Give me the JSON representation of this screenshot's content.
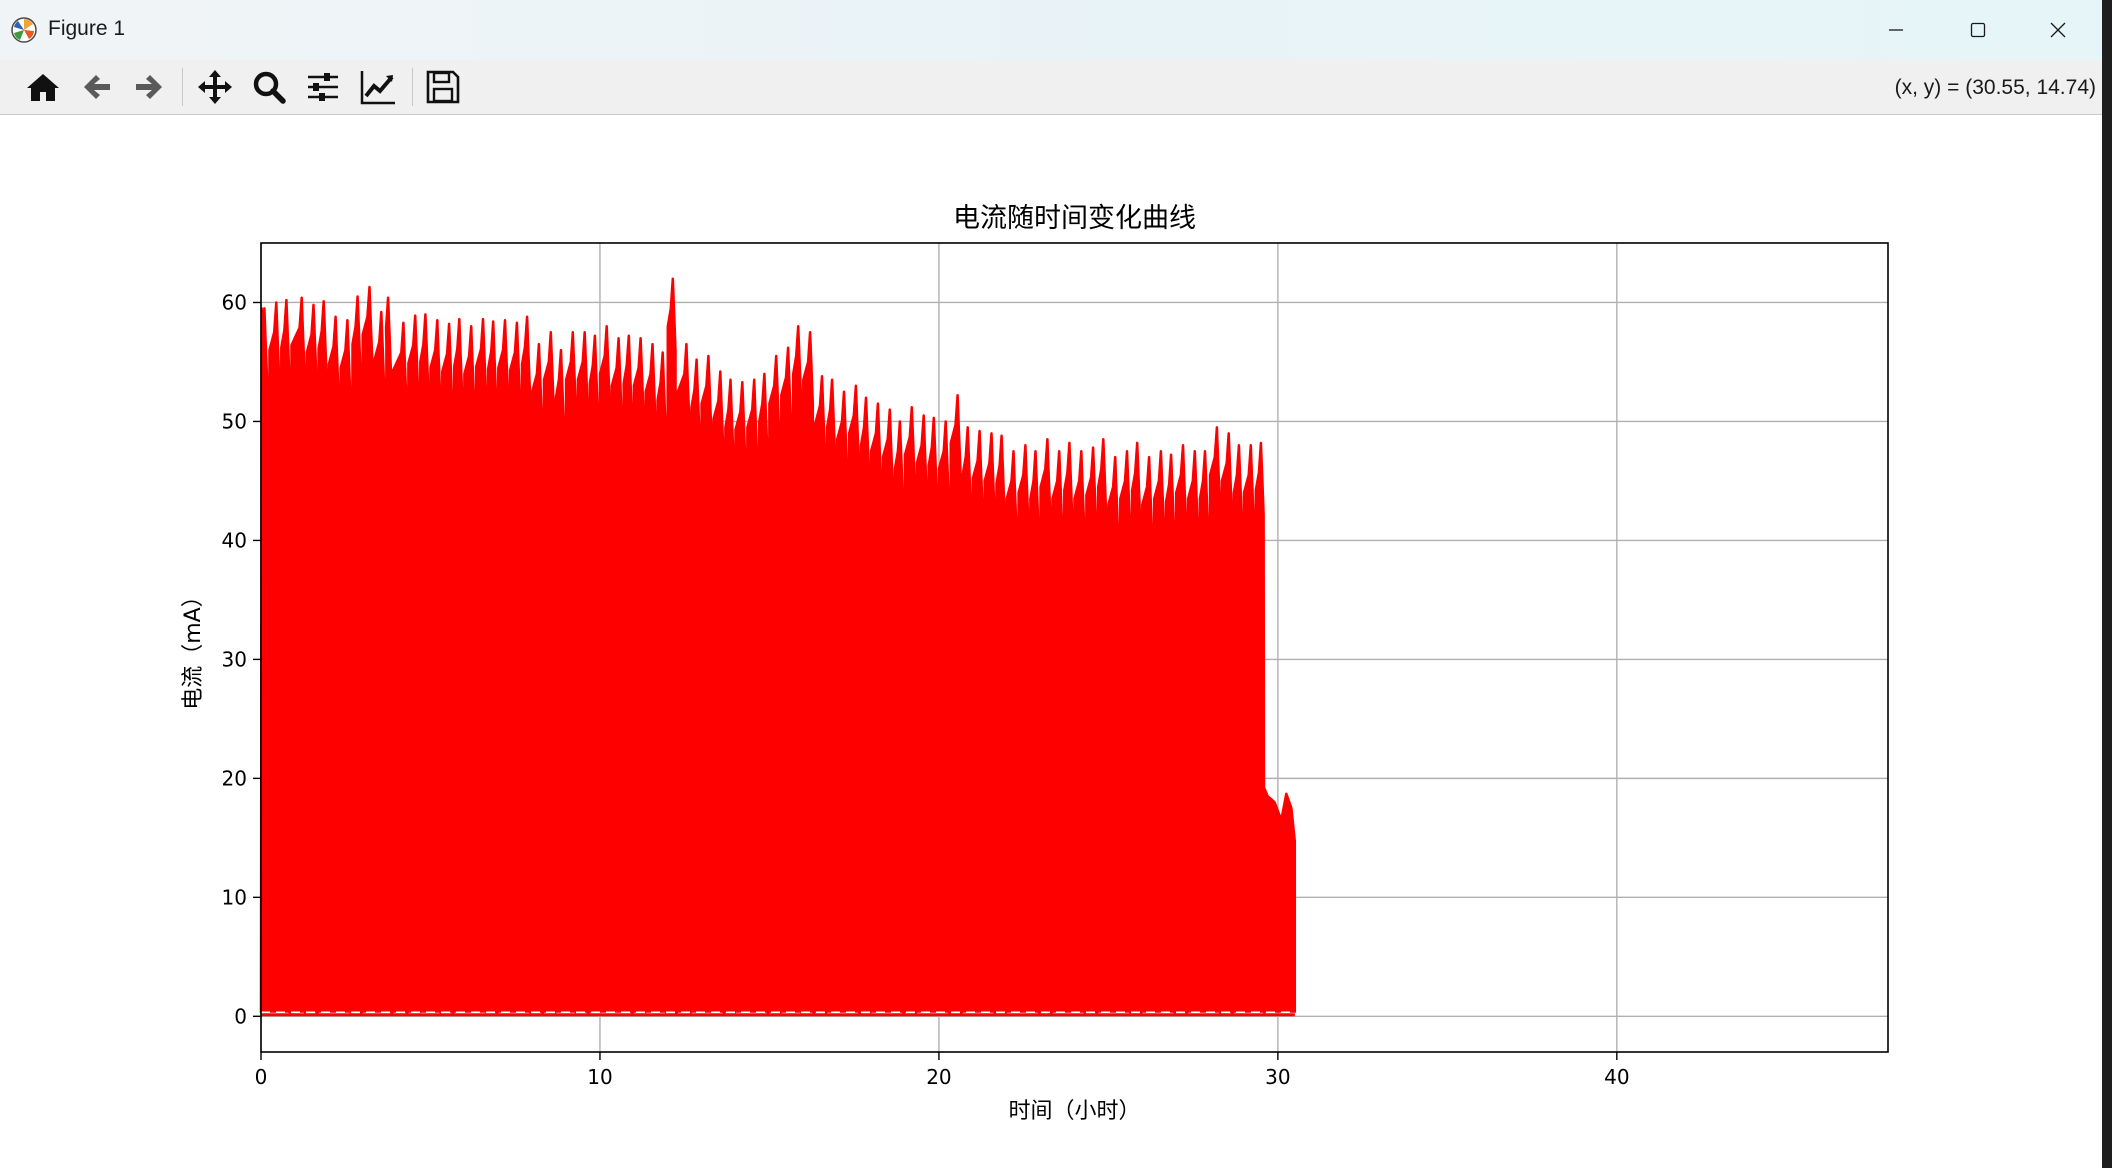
{
  "window": {
    "title": "Figure 1",
    "icon": "matplotlib-icon",
    "controls": [
      "minimize-icon",
      "maximize-icon",
      "close-icon"
    ]
  },
  "toolbar": {
    "buttons": [
      "home-icon",
      "back-icon",
      "forward-icon",
      "pan-icon",
      "zoom-icon",
      "configure-subplots-icon",
      "edit-axes-icon",
      "save-icon"
    ],
    "coords": "(x, y) = (30.55, 14.74)"
  },
  "chart_data": {
    "type": "line",
    "title": "电流随时间变化曲线",
    "xlabel": "时间（小时）",
    "ylabel": "电流（mA）",
    "xlim": [
      0,
      48
    ],
    "ylim": [
      -3,
      65
    ],
    "xticks": [
      0,
      10,
      20,
      30,
      40
    ],
    "yticks": [
      0,
      10,
      20,
      30,
      40,
      50,
      60
    ],
    "grid": true,
    "legend": "none",
    "line_color": "#ff0000",
    "description_of_series": "Repeated current pulses dropping to about 0.3 mA between pulses",
    "series": [
      {
        "x": [
          0.1,
          0.45,
          0.75,
          1.2,
          1.55,
          1.85,
          2.2,
          2.55,
          2.85,
          3.2,
          3.55,
          3.75,
          4.2,
          4.55,
          4.85,
          5.2,
          5.55,
          5.85,
          6.2,
          6.55,
          6.85,
          7.2,
          7.55,
          7.85,
          8.2,
          8.55,
          8.85,
          9.2,
          9.55,
          9.85,
          10.2,
          10.55,
          10.85,
          11.2,
          11.55,
          11.85,
          12.15,
          12.55,
          12.85,
          13.2,
          13.55,
          13.85,
          14.2,
          14.55,
          14.85,
          15.2,
          15.55,
          15.85,
          16.2,
          16.55,
          16.85,
          17.2,
          17.55,
          17.85,
          18.2,
          18.55,
          18.85,
          19.2,
          19.55,
          19.85,
          20.2,
          20.55,
          20.85,
          21.2,
          21.55,
          21.85,
          22.2,
          22.55,
          22.85,
          23.2,
          23.55,
          23.85,
          24.2,
          24.55,
          24.85,
          25.2,
          25.55,
          25.85,
          26.2,
          26.55,
          26.85,
          27.2,
          27.55,
          27.85,
          28.2,
          28.55,
          28.85,
          29.2,
          29.5
        ],
        "peaks": [
          59.5,
          60.0,
          60.2,
          60.4,
          59.8,
          60.1,
          58.8,
          58.5,
          60.5,
          61.3,
          59.2,
          60.4,
          58.3,
          58.9,
          59.0,
          58.5,
          58.2,
          58.6,
          58.0,
          58.6,
          58.4,
          58.5,
          58.3,
          58.8,
          56.5,
          57.5,
          56.0,
          57.5,
          57.5,
          57.2,
          58.0,
          57.0,
          57.2,
          57.0,
          56.5,
          55.8,
          62.0,
          56.5,
          55.2,
          55.5,
          54.2,
          53.5,
          53.3,
          53.5,
          54.0,
          55.5,
          56.2,
          58.0,
          57.5,
          53.8,
          53.5,
          52.5,
          53.0,
          52.0,
          51.5,
          51.0,
          50.0,
          51.2,
          50.5,
          50.3,
          50.0,
          52.2,
          49.5,
          49.2,
          49.0,
          48.8,
          47.5,
          48.0,
          47.5,
          48.5,
          47.5,
          48.2,
          47.5,
          47.8,
          48.5,
          47.0,
          47.5,
          48.2,
          47.0,
          47.5,
          47.2,
          48.0,
          47.5,
          47.5,
          49.5,
          49.0,
          48.0,
          48.0,
          48.2
        ],
        "tail": {
          "x": [
            29.55,
            29.7,
            29.9,
            30.1,
            30.25,
            30.4,
            30.5
          ],
          "y": [
            19.5,
            18.5,
            18.0,
            16.5,
            18.7,
            17.5,
            14.7
          ]
        },
        "baseline": 0.3
      }
    ]
  }
}
